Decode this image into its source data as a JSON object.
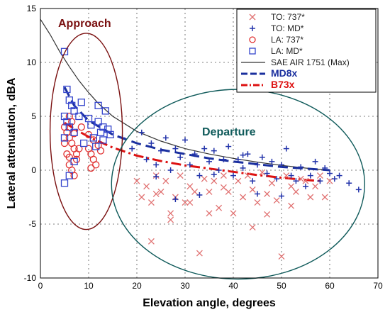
{
  "chart_data": {
    "type": "scatter",
    "title": "",
    "xlabel": "Elevation angle, degrees",
    "ylabel": "Lateral attenuation, dBA",
    "xlim": [
      0,
      70
    ],
    "ylim": [
      -10,
      15
    ],
    "xticks": [
      0,
      10,
      20,
      30,
      40,
      50,
      60,
      70
    ],
    "yticks": [
      -10,
      -5,
      0,
      5,
      10,
      15
    ],
    "grid": true,
    "legend_position": "top-right",
    "colors": {
      "to737": "#e07070",
      "toMD": "#2233aa",
      "la737": "#e03030",
      "laMD": "#3344cc",
      "sae": "#333333",
      "md8x": "#1a2f9e",
      "b73x": "#dd1111",
      "approach_ellipse": "#7a1010",
      "departure_ellipse": "#0f5a5a"
    },
    "annotations": [
      {
        "text": "Approach",
        "color": "#7a1010"
      },
      {
        "text": "Departure",
        "color": "#0f5a5a"
      }
    ],
    "series": [
      {
        "name": "TO: 737*",
        "marker": "x",
        "color": "#e07070",
        "points": [
          [
            20,
            -1
          ],
          [
            21,
            -2.5
          ],
          [
            22,
            -1.5
          ],
          [
            23,
            -3
          ],
          [
            24,
            -0.5
          ],
          [
            25,
            -2
          ],
          [
            26,
            -1
          ],
          [
            27,
            -4
          ],
          [
            28,
            -2.5
          ],
          [
            29,
            -0.5
          ],
          [
            30,
            -3
          ],
          [
            31,
            -1.5
          ],
          [
            32,
            -2
          ],
          [
            33,
            -7.7
          ],
          [
            34,
            -0.8
          ],
          [
            35,
            -2
          ],
          [
            36,
            -1
          ],
          [
            37,
            -3.5
          ],
          [
            38,
            -0.5
          ],
          [
            39,
            -2
          ],
          [
            40,
            -4
          ],
          [
            41,
            -1
          ],
          [
            42,
            -2.5
          ],
          [
            43,
            -0.5
          ],
          [
            44,
            -1.8
          ],
          [
            45,
            -3
          ],
          [
            46,
            -0.2
          ],
          [
            47,
            -2.2
          ],
          [
            48,
            -1.2
          ],
          [
            49,
            -2.8
          ],
          [
            50,
            -8
          ],
          [
            51,
            -0.5
          ],
          [
            52,
            -1.5
          ],
          [
            53,
            -2
          ],
          [
            54,
            -0.8
          ],
          [
            55,
            -1
          ],
          [
            56,
            -2.5
          ],
          [
            57,
            -1.5
          ],
          [
            58,
            -0.5
          ],
          [
            59,
            -2.5
          ],
          [
            60,
            -1
          ],
          [
            23,
            -6.6
          ],
          [
            27,
            -4.6
          ],
          [
            44,
            -5.3
          ],
          [
            47,
            -4.1
          ],
          [
            31,
            -3
          ],
          [
            35,
            -4
          ],
          [
            52,
            -3.3
          ],
          [
            24,
            -2.2
          ],
          [
            38,
            -1.6
          ]
        ]
      },
      {
        "name": "TO: MD*",
        "marker": "+",
        "color": "#2233aa",
        "points": [
          [
            17,
            3
          ],
          [
            19,
            2
          ],
          [
            21,
            3.5
          ],
          [
            22,
            1
          ],
          [
            23,
            2.5
          ],
          [
            24,
            0.5
          ],
          [
            25,
            1.8
          ],
          [
            26,
            3
          ],
          [
            27,
            0
          ],
          [
            28,
            2
          ],
          [
            29,
            1.2
          ],
          [
            30,
            2.8
          ],
          [
            31,
            0.5
          ],
          [
            32,
            1.5
          ],
          [
            33,
            -0.5
          ],
          [
            34,
            2
          ],
          [
            35,
            0.8
          ],
          [
            36,
            1.8
          ],
          [
            37,
            0
          ],
          [
            38,
            1
          ],
          [
            39,
            2.2
          ],
          [
            40,
            -0.5
          ],
          [
            41,
            1
          ],
          [
            42,
            0.2
          ],
          [
            43,
            1.5
          ],
          [
            44,
            -1
          ],
          [
            45,
            0.5
          ],
          [
            46,
            1.2
          ],
          [
            47,
            -0.3
          ],
          [
            48,
            0.8
          ],
          [
            49,
            -0.8
          ],
          [
            50,
            0.5
          ],
          [
            51,
            2
          ],
          [
            52,
            -0.5
          ],
          [
            53,
            -1
          ],
          [
            54,
            0.3
          ],
          [
            55,
            -1.5
          ],
          [
            56,
            -0.5
          ],
          [
            57,
            0.8
          ],
          [
            58,
            -1
          ],
          [
            59,
            0.2
          ],
          [
            60,
            -0.3
          ],
          [
            61,
            -0.8
          ],
          [
            62,
            -0.5
          ],
          [
            64,
            -1.2
          ],
          [
            66,
            -1.8
          ],
          [
            28,
            -2.7
          ],
          [
            33,
            -2.3
          ],
          [
            45,
            -2.2
          ],
          [
            50,
            -2.4
          ],
          [
            24,
            -0.6
          ],
          [
            36,
            -0.4
          ],
          [
            42,
            1.4
          ]
        ]
      },
      {
        "name": "LA: 737*",
        "marker": "o",
        "color": "#e03030",
        "points": [
          [
            5,
            4
          ],
          [
            5.5,
            3.5
          ],
          [
            6,
            3
          ],
          [
            6.5,
            2.5
          ],
          [
            7,
            2
          ],
          [
            7.5,
            1.5
          ],
          [
            6,
            0.5
          ],
          [
            6.5,
            0
          ],
          [
            7,
            -0.5
          ],
          [
            7.5,
            1
          ],
          [
            8,
            2
          ],
          [
            8.5,
            4
          ],
          [
            5,
            2.5
          ],
          [
            5.5,
            1.5
          ],
          [
            6,
            5
          ],
          [
            6.5,
            4.5
          ],
          [
            10,
            2
          ],
          [
            10.5,
            1.5
          ],
          [
            11,
            1
          ],
          [
            11.5,
            0.5
          ],
          [
            12,
            2.3
          ],
          [
            12.5,
            1.8
          ],
          [
            10,
            3.3
          ],
          [
            10.5,
            0.2
          ],
          [
            11,
            2.8
          ],
          [
            7,
            3.4
          ],
          [
            6,
            1.2
          ]
        ]
      },
      {
        "name": "LA: MD*",
        "marker": "s",
        "color": "#3344cc",
        "points": [
          [
            5,
            11
          ],
          [
            5.5,
            7.5
          ],
          [
            6,
            6.5
          ],
          [
            6.5,
            6
          ],
          [
            7,
            5.5
          ],
          [
            5,
            5
          ],
          [
            5.5,
            4.5
          ],
          [
            6,
            4
          ],
          [
            7,
            3.5
          ],
          [
            8,
            5
          ],
          [
            8.5,
            6.3
          ],
          [
            5,
            3
          ],
          [
            9,
            2.5
          ],
          [
            7,
            0.8
          ],
          [
            5,
            -1.2
          ],
          [
            6,
            -0.5
          ],
          [
            10.5,
            4.2
          ],
          [
            11,
            3
          ],
          [
            12,
            4.5
          ],
          [
            12.5,
            3.5
          ],
          [
            13,
            2.8
          ],
          [
            13.5,
            5.5
          ],
          [
            14,
            3.8
          ],
          [
            10,
            4.8
          ],
          [
            11.5,
            2.2
          ],
          [
            12,
            6
          ],
          [
            13,
            4
          ],
          [
            14.5,
            3.3
          ]
        ]
      },
      {
        "name": "SAE AIR 1751 (Max)",
        "style": "solid",
        "color": "#333333",
        "points": [
          [
            0,
            14
          ],
          [
            2,
            12.6
          ],
          [
            4,
            11
          ],
          [
            6,
            9.6
          ],
          [
            8,
            8.3
          ],
          [
            10,
            7.2
          ],
          [
            12,
            6.2
          ],
          [
            15,
            5
          ],
          [
            20,
            3.6
          ],
          [
            25,
            2.7
          ],
          [
            30,
            2
          ],
          [
            35,
            1.5
          ],
          [
            40,
            1.1
          ],
          [
            45,
            0.75
          ],
          [
            50,
            0.45
          ],
          [
            55,
            0.2
          ],
          [
            60,
            0
          ]
        ]
      },
      {
        "name": "MD8x",
        "style": "dashed",
        "color": "#1a2f9e",
        "points": [
          [
            5,
            7.7
          ],
          [
            7,
            6
          ],
          [
            10,
            4.6
          ],
          [
            15,
            3.3
          ],
          [
            20,
            2.5
          ],
          [
            25,
            1.9
          ],
          [
            30,
            1.5
          ],
          [
            35,
            1.1
          ],
          [
            40,
            0.8
          ],
          [
            45,
            0.55
          ],
          [
            50,
            0.3
          ],
          [
            55,
            0.15
          ],
          [
            60,
            0
          ]
        ]
      },
      {
        "name": "B73x",
        "style": "dashdot",
        "color": "#dd1111",
        "points": [
          [
            5,
            4.4
          ],
          [
            8,
            3.6
          ],
          [
            10,
            3.1
          ],
          [
            15,
            2.1
          ],
          [
            20,
            1.35
          ],
          [
            25,
            0.85
          ],
          [
            30,
            0.45
          ],
          [
            35,
            0.15
          ],
          [
            40,
            -0.15
          ],
          [
            45,
            -0.45
          ],
          [
            50,
            -0.7
          ],
          [
            55,
            -0.9
          ],
          [
            58,
            -1
          ]
        ]
      }
    ]
  }
}
